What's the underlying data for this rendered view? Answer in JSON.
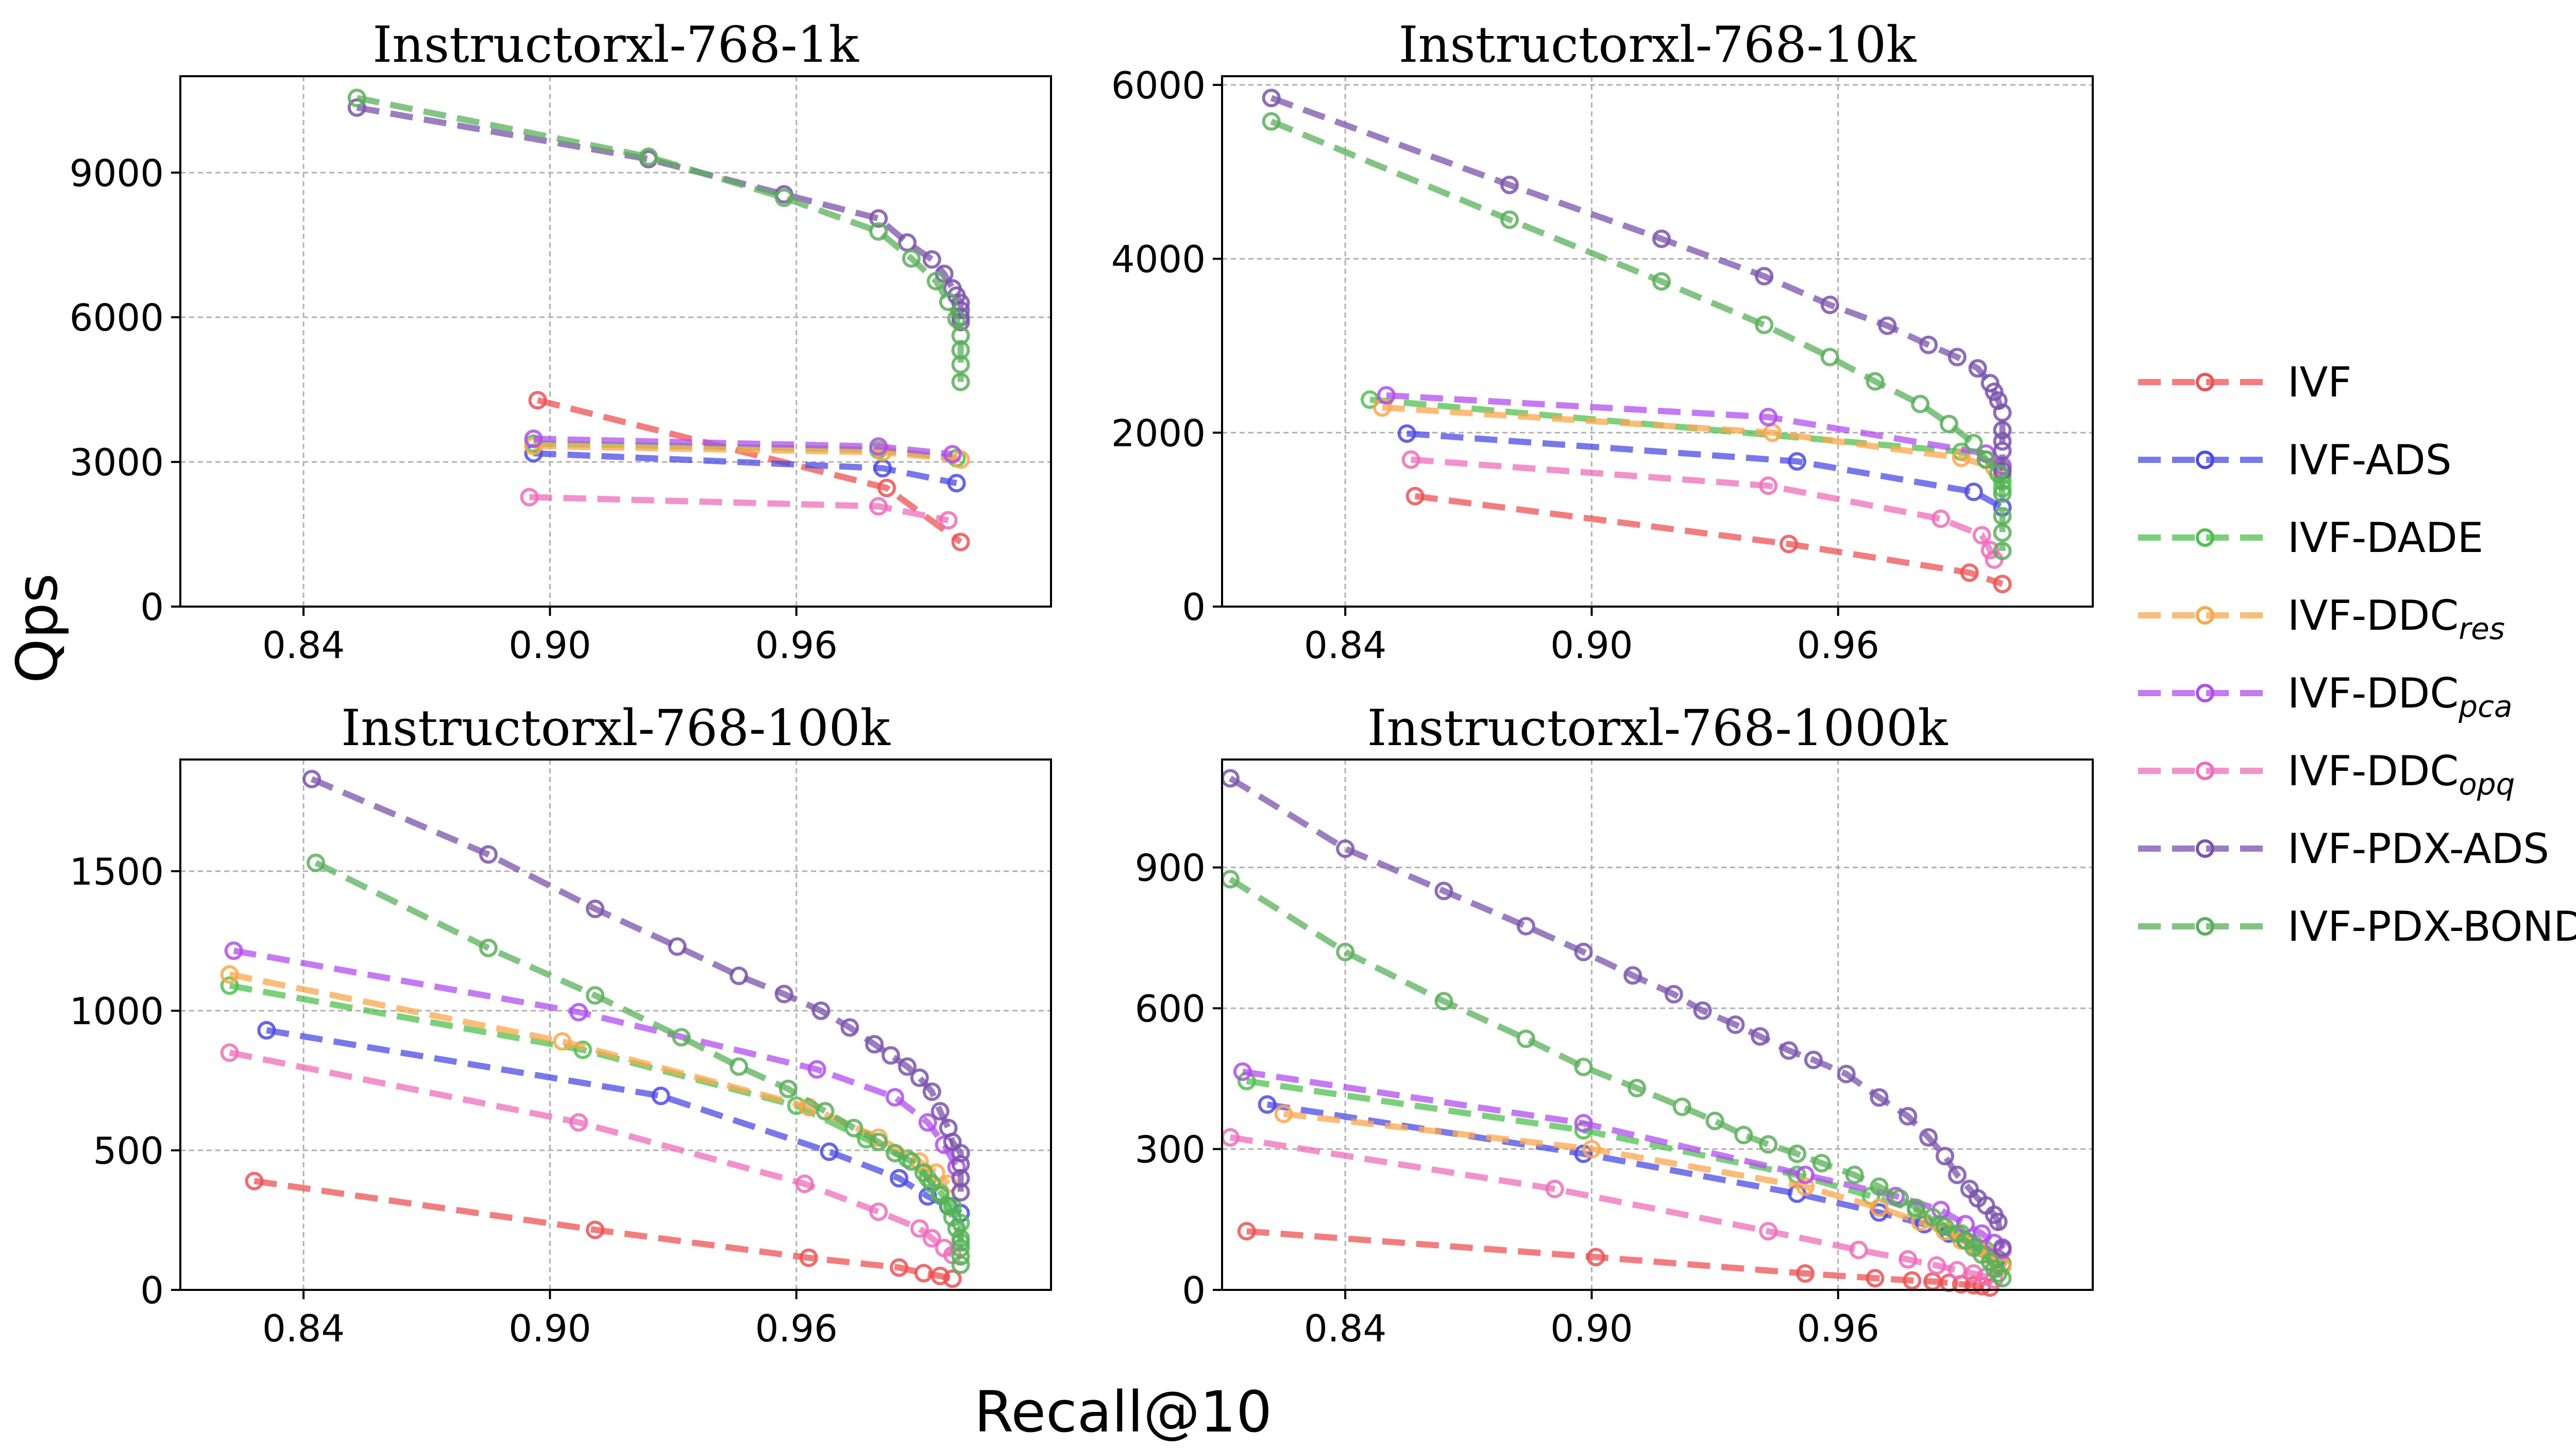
{
  "figure": {
    "xlabel": "Recall@10",
    "ylabel": "Qps"
  },
  "legend": {
    "entries": [
      {
        "name": "IVF",
        "sub": "",
        "color": "#f05050"
      },
      {
        "name": "IVF-ADS",
        "sub": "",
        "color": "#4a4ae8"
      },
      {
        "name": "IVF-DADE",
        "sub": "",
        "color": "#4cc24c"
      },
      {
        "name": "IVF-DDC",
        "sub": "res",
        "color": "#ffa64a"
      },
      {
        "name": "IVF-DDC",
        "sub": "pca",
        "color": "#b24cf0"
      },
      {
        "name": "IVF-DDC",
        "sub": "opq",
        "color": "#f06bbb"
      },
      {
        "name": "IVF-PDX-ADS",
        "sub": "",
        "color": "#7b52ae"
      },
      {
        "name": "IVF-PDX-BOND",
        "sub": "",
        "color": "#58b058"
      }
    ]
  },
  "chart_data": [
    {
      "type": "line",
      "title": "Instructorxl-768-1k",
      "xlabel": "Recall@10",
      "ylabel": "Qps",
      "xlim": [
        0.81,
        1.022
      ],
      "ylim": [
        0,
        11000
      ],
      "xticks": [
        0.84,
        0.9,
        0.96
      ],
      "xticklabels": [
        "0.84",
        "0.90",
        "0.96"
      ],
      "yticks": [
        0,
        3000,
        6000,
        9000
      ],
      "yticklabels": [
        "0",
        "3000",
        "6000",
        "9000"
      ],
      "series": [
        {
          "name": "IVF",
          "x": [
            0.897,
            0.982,
            1.0
          ],
          "y": [
            4280,
            2460,
            1340
          ]
        },
        {
          "name": "IVF-ADS",
          "x": [
            0.896,
            0.981,
            0.999
          ],
          "y": [
            3180,
            2870,
            2560
          ]
        },
        {
          "name": "IVF-DADE",
          "x": [
            0.896,
            0.98,
            0.999
          ],
          "y": [
            3380,
            3250,
            3080
          ]
        },
        {
          "name": "IVF-DDC-res",
          "x": [
            0.896,
            0.981,
            1.0
          ],
          "y": [
            3330,
            3200,
            3050
          ]
        },
        {
          "name": "IVF-DDC-pca",
          "x": [
            0.896,
            0.98,
            0.998
          ],
          "y": [
            3480,
            3320,
            3160
          ]
        },
        {
          "name": "IVF-DDC-opq",
          "x": [
            0.895,
            0.98,
            0.997
          ],
          "y": [
            2270,
            2080,
            1790
          ]
        },
        {
          "name": "IVF-PDX-ADS",
          "x": [
            0.853,
            0.924,
            0.957,
            0.98,
            0.987,
            0.993,
            0.996,
            0.998,
            0.999,
            1.0,
            1.0,
            1.0,
            1.0
          ],
          "y": [
            10350,
            9280,
            8550,
            8050,
            7550,
            7200,
            6900,
            6600,
            6450,
            6300,
            6150,
            6000,
            5900
          ]
        },
        {
          "name": "IVF-PDX-BOND",
          "x": [
            0.853,
            0.924,
            0.957,
            0.98,
            0.988,
            0.994,
            0.997,
            0.999,
            1.0,
            1.0,
            1.0,
            1.0
          ],
          "y": [
            10550,
            9330,
            8480,
            7780,
            7220,
            6750,
            6320,
            5970,
            5620,
            5320,
            5020,
            4660
          ]
        }
      ]
    },
    {
      "type": "line",
      "title": "Instructorxl-768-10k",
      "xlabel": "Recall@10",
      "ylabel": "Qps",
      "xlim": [
        0.81,
        1.022
      ],
      "ylim": [
        0,
        6100
      ],
      "xticks": [
        0.84,
        0.9,
        0.96
      ],
      "xticklabels": [
        "0.84",
        "0.90",
        "0.96"
      ],
      "yticks": [
        0,
        2000,
        4000,
        6000
      ],
      "yticklabels": [
        "0",
        "2000",
        "4000",
        "6000"
      ],
      "series": [
        {
          "name": "IVF",
          "x": [
            0.857,
            0.948,
            0.992,
            1.0
          ],
          "y": [
            1270,
            720,
            390,
            260
          ]
        },
        {
          "name": "IVF-ADS",
          "x": [
            0.855,
            0.95,
            0.993,
            1.0
          ],
          "y": [
            1990,
            1670,
            1320,
            1140
          ]
        },
        {
          "name": "IVF-DADE",
          "x": [
            0.846,
            0.99,
            0.996,
            1.0,
            1.0,
            1.0,
            1.0
          ],
          "y": [
            2380,
            1780,
            1690,
            1590,
            1510,
            1440,
            1360
          ]
        },
        {
          "name": "IVF-DDC-res",
          "x": [
            0.849,
            0.944,
            0.99,
            0.998
          ],
          "y": [
            2290,
            2000,
            1710,
            1600
          ]
        },
        {
          "name": "IVF-DDC-pca",
          "x": [
            0.85,
            0.943,
            0.996,
            1.0
          ],
          "y": [
            2430,
            2180,
            1760,
            1620
          ]
        },
        {
          "name": "IVF-DDC-opq",
          "x": [
            0.856,
            0.943,
            0.985,
            0.995,
            0.997,
            0.998
          ],
          "y": [
            1690,
            1390,
            1010,
            820,
            650,
            540
          ]
        },
        {
          "name": "IVF-PDX-ADS",
          "x": [
            0.822,
            0.88,
            0.917,
            0.942,
            0.958,
            0.972,
            0.982,
            0.989,
            0.994,
            0.997,
            0.998,
            0.999,
            1.0,
            1.0,
            1.0,
            1.0,
            1.0
          ],
          "y": [
            5850,
            4850,
            4230,
            3800,
            3470,
            3230,
            3010,
            2870,
            2740,
            2570,
            2470,
            2370,
            2230,
            2030,
            1900,
            1790,
            1560
          ]
        },
        {
          "name": "IVF-PDX-BOND",
          "x": [
            0.822,
            0.88,
            0.917,
            0.942,
            0.958,
            0.969,
            0.98,
            0.987,
            0.993,
            0.996,
            0.999,
            1.0,
            1.0,
            1.0,
            1.0
          ],
          "y": [
            5580,
            4450,
            3740,
            3240,
            2870,
            2590,
            2330,
            2100,
            1880,
            1690,
            1530,
            1300,
            1040,
            850,
            640
          ]
        }
      ]
    },
    {
      "type": "line",
      "title": "Instructorxl-768-100k",
      "xlabel": "Recall@10",
      "ylabel": "Qps",
      "xlim": [
        0.81,
        1.022
      ],
      "ylim": [
        0,
        1900
      ],
      "xticks": [
        0.84,
        0.9,
        0.96
      ],
      "xticklabels": [
        "0.84",
        "0.90",
        "0.96"
      ],
      "yticks": [
        0,
        500,
        1000,
        1500
      ],
      "yticklabels": [
        "0",
        "500",
        "1000",
        "1500"
      ],
      "series": [
        {
          "name": "IVF",
          "x": [
            0.828,
            0.911,
            0.963,
            0.985,
            0.991,
            0.995,
            0.998
          ],
          "y": [
            390,
            215,
            115,
            80,
            60,
            50,
            40
          ]
        },
        {
          "name": "IVF-ADS",
          "x": [
            0.831,
            0.927,
            0.968,
            0.985,
            0.992,
            0.997,
            1.0
          ],
          "y": [
            930,
            695,
            495,
            400,
            335,
            300,
            275
          ]
        },
        {
          "name": "IVF-DADE",
          "x": [
            0.822,
            0.908,
            0.96,
            0.977,
            0.987,
            0.992,
            0.995,
            0.998,
            1.0,
            1.0
          ],
          "y": [
            1090,
            860,
            660,
            540,
            470,
            400,
            350,
            300,
            240,
            170
          ]
        },
        {
          "name": "IVF-DDC-res",
          "x": [
            0.822,
            0.903,
            0.963,
            0.98,
            0.99,
            0.994,
            0.997
          ],
          "y": [
            1130,
            890,
            655,
            545,
            460,
            420,
            380
          ]
        },
        {
          "name": "IVF-DDC-pca",
          "x": [
            0.823,
            0.907,
            0.965,
            0.984,
            0.992,
            0.996,
            0.999
          ],
          "y": [
            1215,
            995,
            790,
            690,
            600,
            520,
            440
          ]
        },
        {
          "name": "IVF-DDC-opq",
          "x": [
            0.822,
            0.907,
            0.962,
            0.98,
            0.99,
            0.993,
            0.996,
            0.998
          ],
          "y": [
            850,
            600,
            380,
            280,
            220,
            185,
            150,
            125
          ]
        },
        {
          "name": "IVF-PDX-ADS",
          "x": [
            0.842,
            0.885,
            0.911,
            0.931,
            0.946,
            0.957,
            0.966,
            0.973,
            0.979,
            0.983,
            0.987,
            0.99,
            0.993,
            0.995,
            0.997,
            0.998,
            1.0,
            1.0,
            1.0,
            1.0
          ],
          "y": [
            1830,
            1560,
            1365,
            1230,
            1125,
            1060,
            1000,
            940,
            880,
            840,
            800,
            760,
            710,
            640,
            580,
            530,
            490,
            450,
            400,
            350
          ]
        },
        {
          "name": "IVF-PDX-BOND",
          "x": [
            0.843,
            0.885,
            0.911,
            0.932,
            0.946,
            0.958,
            0.967,
            0.974,
            0.98,
            0.984,
            0.988,
            0.991,
            0.993,
            0.995,
            0.997,
            0.998,
            0.999,
            1.0,
            1.0,
            1.0,
            1.0
          ],
          "y": [
            1530,
            1225,
            1055,
            905,
            800,
            720,
            640,
            580,
            530,
            490,
            460,
            420,
            380,
            340,
            300,
            260,
            220,
            185,
            150,
            120,
            90
          ]
        }
      ]
    },
    {
      "type": "line",
      "title": "Instructorxl-768-1000k",
      "xlabel": "Recall@10",
      "ylabel": "Qps",
      "xlim": [
        0.81,
        1.022
      ],
      "ylim": [
        0,
        1130
      ],
      "xticks": [
        0.84,
        0.9,
        0.96
      ],
      "xticklabels": [
        "0.84",
        "0.90",
        "0.96"
      ],
      "yticks": [
        0,
        300,
        600,
        900
      ],
      "yticklabels": [
        "0",
        "300",
        "600",
        "900"
      ],
      "series": [
        {
          "name": "IVF",
          "x": [
            0.816,
            0.901,
            0.952,
            0.969,
            0.978,
            0.983,
            0.987,
            0.99,
            0.993,
            0.995,
            0.997
          ],
          "y": [
            125,
            70,
            35,
            25,
            20,
            18,
            15,
            12,
            10,
            8,
            5
          ]
        },
        {
          "name": "IVF-ADS",
          "x": [
            0.821,
            0.898,
            0.95,
            0.97,
            0.981,
            0.987,
            0.991,
            0.994,
            0.997,
            0.999,
            1.0
          ],
          "y": [
            395,
            290,
            205,
            165,
            140,
            120,
            105,
            90,
            75,
            65,
            55
          ]
        },
        {
          "name": "IVF-DADE",
          "x": [
            0.816,
            0.898,
            0.95,
            0.968,
            0.979,
            0.985,
            0.99,
            0.993,
            0.996,
            0.998,
            1.0
          ],
          "y": [
            445,
            340,
            245,
            200,
            170,
            140,
            120,
            100,
            85,
            70,
            55
          ]
        },
        {
          "name": "IVF-DDC-res",
          "x": [
            0.825,
            0.9,
            0.952,
            0.97,
            0.98,
            0.986,
            0.99,
            0.994,
            0.997,
            0.999,
            1.0
          ],
          "y": [
            375,
            300,
            220,
            175,
            145,
            125,
            105,
            90,
            75,
            60,
            50
          ]
        },
        {
          "name": "IVF-DDC-pca",
          "x": [
            0.815,
            0.898,
            0.952,
            0.974,
            0.985,
            0.991,
            0.995,
            0.998,
            1.0
          ],
          "y": [
            465,
            355,
            245,
            200,
            170,
            140,
            120,
            100,
            85
          ]
        },
        {
          "name": "IVF-DDC-opq",
          "x": [
            0.812,
            0.891,
            0.943,
            0.965,
            0.977,
            0.984,
            0.989,
            0.993,
            0.996,
            0.998
          ],
          "y": [
            325,
            215,
            125,
            85,
            65,
            52,
            42,
            35,
            28,
            22
          ]
        },
        {
          "name": "IVF-PDX-ADS",
          "x": [
            0.812,
            0.84,
            0.864,
            0.884,
            0.898,
            0.91,
            0.92,
            0.927,
            0.935,
            0.941,
            0.948,
            0.954,
            0.962,
            0.97,
            0.977,
            0.982,
            0.986,
            0.989,
            0.992,
            0.994,
            0.996,
            0.998,
            0.999,
            1.0
          ],
          "y": [
            1090,
            940,
            850,
            775,
            720,
            670,
            630,
            595,
            565,
            540,
            510,
            490,
            460,
            410,
            370,
            325,
            285,
            245,
            215,
            195,
            180,
            160,
            145,
            90
          ]
        },
        {
          "name": "IVF-PDX-BOND",
          "x": [
            0.812,
            0.84,
            0.864,
            0.884,
            0.898,
            0.911,
            0.922,
            0.93,
            0.937,
            0.943,
            0.95,
            0.956,
            0.964,
            0.97,
            0.975,
            0.979,
            0.983,
            0.986,
            0.989,
            0.991,
            0.993,
            0.995,
            0.997,
            0.998,
            0.999,
            1.0
          ],
          "y": [
            875,
            720,
            615,
            535,
            475,
            430,
            390,
            360,
            330,
            310,
            290,
            270,
            245,
            220,
            195,
            175,
            155,
            135,
            120,
            105,
            90,
            75,
            60,
            45,
            35,
            25
          ]
        }
      ]
    }
  ]
}
